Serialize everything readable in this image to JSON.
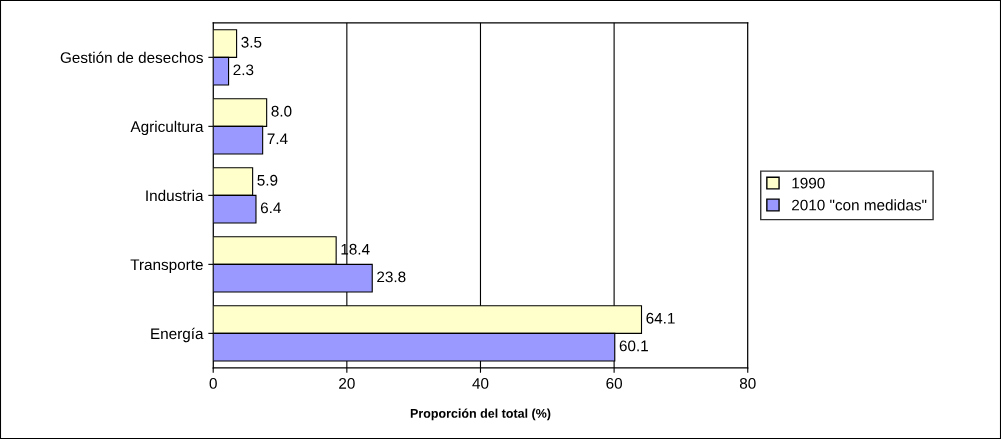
{
  "chart_data": {
    "type": "bar",
    "orientation": "horizontal",
    "xlabel": "Proporción del total (%)",
    "categories": [
      "Gestión de desechos",
      "Agricultura",
      "Industria",
      "Transporte",
      "Energía"
    ],
    "series": [
      {
        "name": "1990",
        "color": "#ffffcc",
        "values": [
          3.5,
          8.0,
          5.9,
          18.4,
          64.1
        ],
        "value_labels": [
          "3.5",
          "8.0",
          "5.9",
          "18.4",
          "64.1"
        ]
      },
      {
        "name": "2010 \"con medidas\"",
        "color": "#9999ff",
        "values": [
          2.3,
          7.4,
          6.4,
          23.8,
          60.1
        ],
        "value_labels": [
          "2.3",
          "7.4",
          "6.4",
          "23.8",
          "60.1"
        ]
      }
    ],
    "xlim": [
      0,
      80
    ],
    "xticks": [
      0,
      20,
      40,
      60,
      80
    ],
    "grid": "x",
    "legend": "right"
  }
}
